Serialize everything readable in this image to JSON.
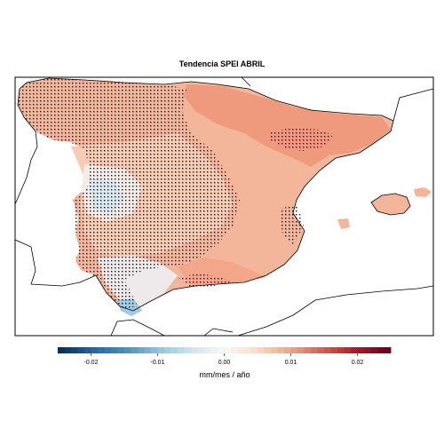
{
  "title": "Tendencia SPEI ABRIL",
  "legend": {
    "label": "mm/mes / año",
    "min": -0.025,
    "max": 0.025,
    "ticks": [
      {
        "value": -0.02,
        "label": "-0.02"
      },
      {
        "value": -0.01,
        "label": "-0.01"
      },
      {
        "value": 0.0,
        "label": "0.00"
      },
      {
        "value": 0.01,
        "label": "0.01"
      },
      {
        "value": 0.02,
        "label": "0.02"
      }
    ],
    "colors": [
      "#053061",
      "#2166ac",
      "#4393c3",
      "#92c5de",
      "#d1e5f0",
      "#f7f7f7",
      "#fddbc7",
      "#f4a582",
      "#d6604d",
      "#b2182b",
      "#67001f"
    ]
  },
  "colors": {
    "land": "#f4b69b",
    "land_light": "#f8ccb4",
    "land_strong": "#ef9a7c",
    "land_neutral": "#f5ece8",
    "land_blue": "#cfe3ef",
    "land_blue_strong": "#9fcbe4",
    "stipple": "#111111",
    "coast": "#000000"
  }
}
